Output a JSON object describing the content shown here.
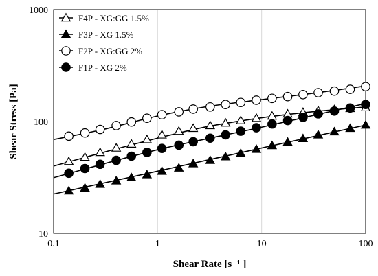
{
  "chart_data": {
    "type": "scatter",
    "title": "",
    "xlabel": "Shear Rate [s⁻¹ ]",
    "ylabel": "Shear Stress [Pa]",
    "x_scale": "log",
    "y_scale": "log",
    "xlim": [
      0.1,
      100
    ],
    "ylim": [
      10,
      1000
    ],
    "x_ticks": [
      "0.1",
      "1",
      "10",
      "100"
    ],
    "y_ticks": [
      "10",
      "100",
      "1000"
    ],
    "grid": "vertical",
    "legend_position": "top-left",
    "x": [
      0.14,
      0.2,
      0.28,
      0.4,
      0.56,
      0.79,
      1.1,
      1.6,
      2.2,
      3.2,
      4.5,
      6.3,
      8.9,
      12.6,
      17.8,
      25,
      35,
      50,
      71,
      100
    ],
    "series": [
      {
        "name": "F4P - XG:GG 1.5%",
        "marker": "open-triangle",
        "values": [
          44,
          48,
          53,
          58,
          63,
          69,
          76,
          82,
          87,
          92,
          97,
          102,
          107,
          112,
          117,
          121,
          125,
          128,
          131,
          133
        ],
        "fit": [
          [
            0.1,
            40
          ],
          [
            0.3,
            53
          ],
          [
            1,
            71
          ],
          [
            3,
            90
          ],
          [
            10,
            108
          ],
          [
            30,
            122
          ],
          [
            100,
            135
          ]
        ]
      },
      {
        "name": "F3P - XG 1.5%",
        "marker": "filled-triangle",
        "values": [
          24,
          25.5,
          27.5,
          29.5,
          31.5,
          33.5,
          36,
          38.5,
          42,
          45,
          48.5,
          52,
          56.5,
          61,
          65.5,
          70.5,
          76,
          81,
          87,
          93
        ],
        "fit": [
          [
            0.1,
            22.5
          ],
          [
            1,
            36
          ],
          [
            10,
            58
          ],
          [
            100,
            93
          ]
        ]
      },
      {
        "name": "F2P - XG:GG 2%",
        "marker": "open-circle",
        "values": [
          74,
          79,
          85,
          92,
          99,
          107,
          115,
          122,
          129,
          135,
          142,
          148,
          155,
          161,
          167,
          174,
          181,
          187,
          194,
          205
        ],
        "fit": [
          [
            0.1,
            69
          ],
          [
            0.3,
            85
          ],
          [
            1,
            112
          ],
          [
            3,
            136
          ],
          [
            10,
            157
          ],
          [
            30,
            178
          ],
          [
            100,
            208
          ]
        ]
      },
      {
        "name": "F1P - XG 2%",
        "marker": "filled-circle",
        "values": [
          34.5,
          38,
          41.5,
          45,
          49,
          53,
          57.5,
          61.5,
          66,
          71,
          76,
          82,
          88,
          95,
          102,
          109,
          117,
          124,
          132,
          142
        ],
        "fit": [
          [
            0.1,
            31.5
          ],
          [
            1,
            56
          ],
          [
            10,
            89
          ],
          [
            100,
            145
          ]
        ]
      }
    ]
  }
}
